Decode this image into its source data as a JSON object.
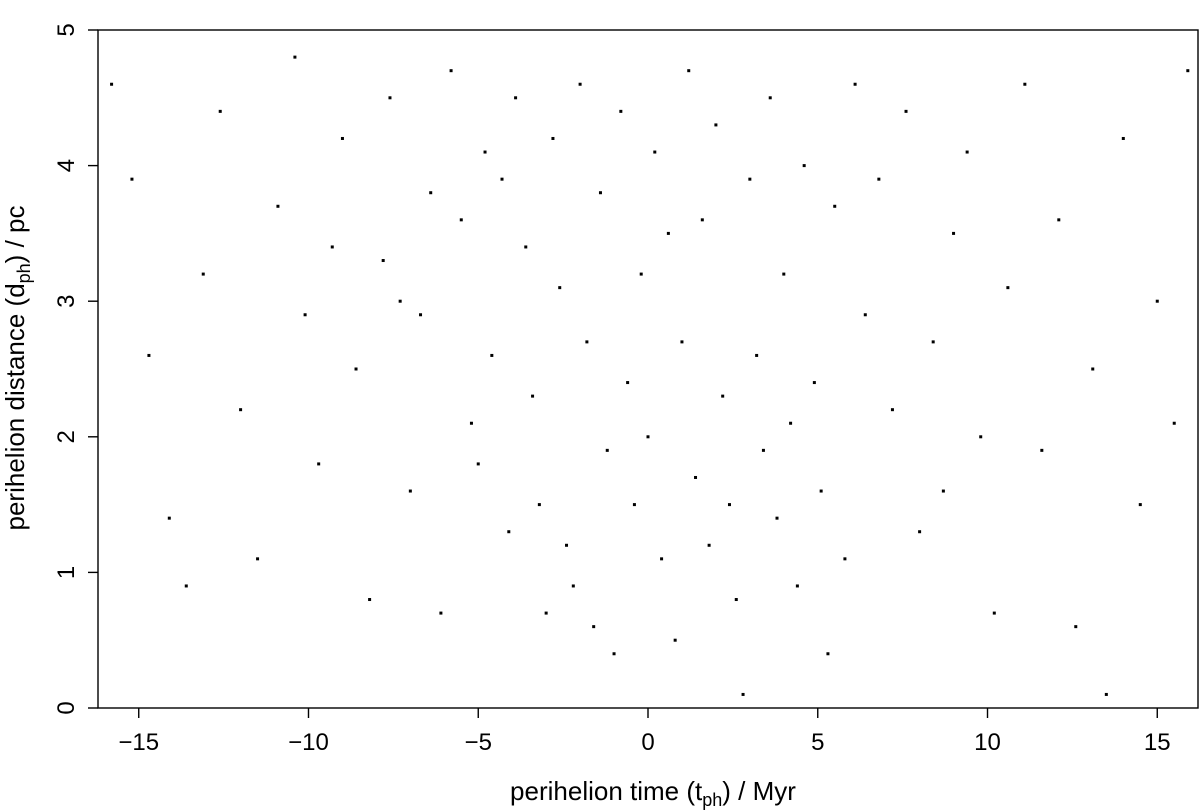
{
  "chart_data": {
    "type": "scatter",
    "title": "",
    "xlabel": {
      "prefix": "perihelion time (t",
      "sub": "ph",
      "suffix": ") / Myr"
    },
    "ylabel": {
      "prefix": "perihelion distance (d",
      "sub": "ph",
      "suffix": ") / pc"
    },
    "xlim": [
      -16.2,
      16.2
    ],
    "ylim": [
      0,
      5
    ],
    "xticks": [
      -15,
      -10,
      -5,
      0,
      5,
      10,
      15
    ],
    "yticks": [
      0,
      1,
      2,
      3,
      4,
      5
    ],
    "grid": false,
    "legend": "none",
    "marker_color": "#000000",
    "series": [
      {
        "points": [
          [
            -15.8,
            4.6
          ],
          [
            -15.2,
            3.9
          ],
          [
            -14.7,
            2.6
          ],
          [
            -14.1,
            1.4
          ],
          [
            -13.6,
            0.9
          ],
          [
            -13.1,
            3.2
          ],
          [
            -12.6,
            4.4
          ],
          [
            -12.0,
            2.2
          ],
          [
            -11.5,
            1.1
          ],
          [
            -10.9,
            3.7
          ],
          [
            -10.4,
            4.8
          ],
          [
            -10.1,
            2.9
          ],
          [
            -9.7,
            1.8
          ],
          [
            -9.3,
            3.4
          ],
          [
            -9.0,
            4.2
          ],
          [
            -8.6,
            2.5
          ],
          [
            -8.2,
            0.8
          ],
          [
            -7.8,
            3.3
          ],
          [
            -7.6,
            4.5
          ],
          [
            -7.3,
            3.0
          ],
          [
            -7.0,
            1.6
          ],
          [
            -6.7,
            2.9
          ],
          [
            -6.4,
            3.8
          ],
          [
            -6.1,
            0.7
          ],
          [
            -5.8,
            4.7
          ],
          [
            -5.5,
            3.6
          ],
          [
            -5.2,
            2.1
          ],
          [
            -5.0,
            1.8
          ],
          [
            -4.8,
            4.1
          ],
          [
            -4.6,
            2.6
          ],
          [
            -4.3,
            3.9
          ],
          [
            -4.1,
            1.3
          ],
          [
            -3.9,
            4.5
          ],
          [
            -3.6,
            3.4
          ],
          [
            -3.4,
            2.3
          ],
          [
            -3.2,
            1.5
          ],
          [
            -3.0,
            0.7
          ],
          [
            -2.8,
            4.2
          ],
          [
            -2.6,
            3.1
          ],
          [
            -2.4,
            1.2
          ],
          [
            -2.2,
            0.9
          ],
          [
            -2.0,
            4.6
          ],
          [
            -1.8,
            2.7
          ],
          [
            -1.6,
            0.6
          ],
          [
            -1.4,
            3.8
          ],
          [
            -1.2,
            1.9
          ],
          [
            -1.0,
            0.4
          ],
          [
            -0.8,
            4.4
          ],
          [
            -0.6,
            2.4
          ],
          [
            -0.4,
            1.5
          ],
          [
            -0.2,
            3.2
          ],
          [
            0.0,
            2.0
          ],
          [
            0.2,
            4.1
          ],
          [
            0.4,
            1.1
          ],
          [
            0.6,
            3.5
          ],
          [
            0.8,
            0.5
          ],
          [
            1.0,
            2.7
          ],
          [
            1.2,
            4.7
          ],
          [
            1.4,
            1.7
          ],
          [
            1.6,
            3.6
          ],
          [
            1.8,
            1.2
          ],
          [
            2.0,
            4.3
          ],
          [
            2.2,
            2.3
          ],
          [
            2.4,
            1.5
          ],
          [
            2.6,
            0.8
          ],
          [
            2.8,
            0.1
          ],
          [
            3.0,
            3.9
          ],
          [
            3.2,
            2.6
          ],
          [
            3.4,
            1.9
          ],
          [
            3.6,
            4.5
          ],
          [
            3.8,
            1.4
          ],
          [
            4.0,
            3.2
          ],
          [
            4.2,
            2.1
          ],
          [
            4.4,
            0.9
          ],
          [
            4.6,
            4.0
          ],
          [
            4.9,
            2.4
          ],
          [
            5.1,
            1.6
          ],
          [
            5.3,
            0.4
          ],
          [
            5.5,
            3.7
          ],
          [
            5.8,
            1.1
          ],
          [
            6.1,
            4.6
          ],
          [
            6.4,
            2.9
          ],
          [
            6.8,
            3.9
          ],
          [
            7.2,
            2.2
          ],
          [
            7.6,
            4.4
          ],
          [
            8.0,
            1.3
          ],
          [
            8.4,
            2.7
          ],
          [
            8.7,
            1.6
          ],
          [
            9.0,
            3.5
          ],
          [
            9.4,
            4.1
          ],
          [
            9.8,
            2.0
          ],
          [
            10.2,
            0.7
          ],
          [
            10.6,
            3.1
          ],
          [
            11.1,
            4.6
          ],
          [
            11.6,
            1.9
          ],
          [
            12.1,
            3.6
          ],
          [
            12.6,
            0.6
          ],
          [
            13.1,
            2.5
          ],
          [
            13.5,
            0.1
          ],
          [
            14.0,
            4.2
          ],
          [
            14.5,
            1.5
          ],
          [
            15.0,
            3.0
          ],
          [
            15.5,
            2.1
          ],
          [
            15.9,
            4.7
          ]
        ]
      }
    ]
  }
}
